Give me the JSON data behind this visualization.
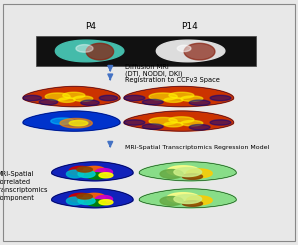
{
  "background_color": "#e8e8e8",
  "border_color": "#888888",
  "arrow_color": "#4472c4",
  "text_color": "#000000",
  "label_p4": "P4",
  "label_p14": "P14",
  "step_labels": [
    "Diffusion MRI\n(DTI, NODDI, DKI)",
    "Registration to CCFv3 Space",
    "MRI-Spatial Transcriptomics Regression Model"
  ],
  "left_label": "MRI-Spatial\nCorrelated\nTranscriptomics\nComponent"
}
